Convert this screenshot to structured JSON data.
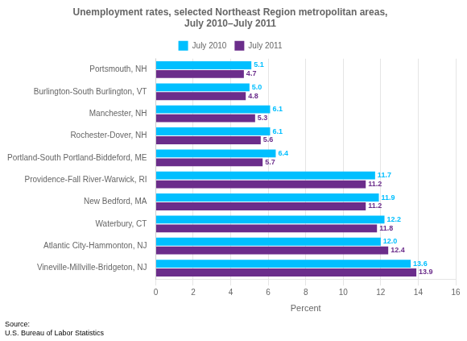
{
  "chart_data": {
    "type": "bar",
    "orientation": "horizontal",
    "title": "Unemployment rates, selected Northeast Region metropolitan areas,\nJuly 2010–July 2011",
    "categories": [
      "Portsmouth, NH",
      "Burlington-South Burlington, VT",
      "Manchester, NH",
      "Rochester-Dover, NH",
      "Portland-South Portland-Biddeford, ME",
      "Providence-Fall River-Warwick, RI",
      "New Bedford, MA",
      "Waterbury, CT",
      "Atlantic City-Hammonton, NJ",
      "Vineville-Millville-Bridgeton, NJ"
    ],
    "series": [
      {
        "name": "July 2010",
        "color": "#00BFFF",
        "values": [
          5.1,
          5.0,
          6.1,
          6.1,
          6.4,
          11.7,
          11.9,
          12.2,
          12.0,
          13.6
        ],
        "value_labels": [
          "5.1",
          "5.0",
          "6.1",
          "6.1",
          "6.4",
          "11.7",
          "11.9",
          "12.2",
          "12.0",
          "13.6"
        ]
      },
      {
        "name": "July 2011",
        "color": "#6B2D8B",
        "values": [
          4.7,
          4.8,
          5.3,
          5.6,
          5.7,
          11.2,
          11.2,
          11.8,
          12.4,
          13.9
        ],
        "value_labels": [
          "4.7",
          "4.8",
          "5.3",
          "5.6",
          "5.7",
          "11.2",
          "11.2",
          "11.8",
          "12.4",
          "13.9"
        ]
      }
    ],
    "xlabel": "Percent",
    "xlim": [
      0,
      16
    ],
    "xticks": [
      0,
      2,
      4,
      6,
      8,
      10,
      12,
      14,
      16
    ],
    "grid": true,
    "legend": "top",
    "data_labels": true,
    "annotations": [
      "Source:\nU.S. Bureau of Labor Statistics"
    ]
  }
}
